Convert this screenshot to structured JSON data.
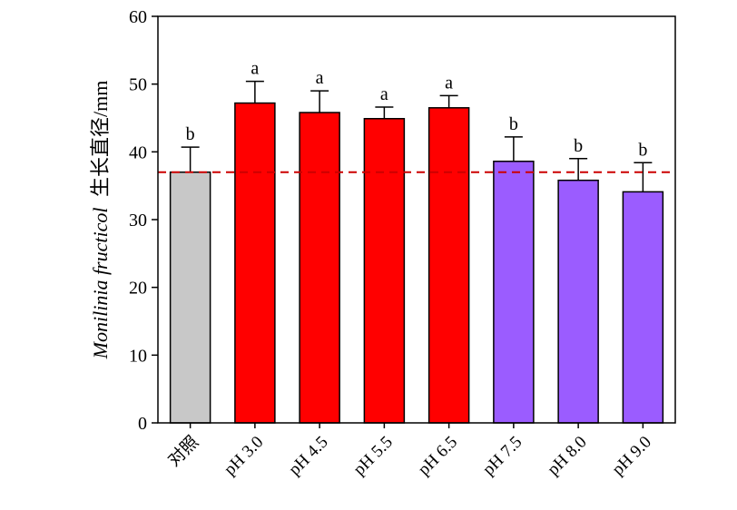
{
  "chart_data": {
    "type": "bar",
    "title": "",
    "xlabel": "",
    "ylabel_italic": "Monilinia fructicol",
    "ylabel_rest": "生长直径/mm",
    "ylim": [
      0,
      60
    ],
    "yticks": [
      0,
      10,
      20,
      30,
      40,
      50,
      60
    ],
    "grid": false,
    "categories": [
      "对照",
      "pH 3.0",
      "pH 4.5",
      "pH 5.5",
      "pH 6.5",
      "pH 7.5",
      "pH 8.0",
      "pH 9.0"
    ],
    "values": [
      37.0,
      47.2,
      45.8,
      44.9,
      46.5,
      38.6,
      35.8,
      34.1
    ],
    "errors": [
      3.7,
      3.2,
      3.2,
      1.7,
      1.8,
      3.6,
      3.2,
      4.3
    ],
    "significance": [
      "b",
      "a",
      "a",
      "a",
      "a",
      "b",
      "b",
      "b"
    ],
    "bar_colors": [
      "#c8c8c8",
      "#ff0000",
      "#ff0000",
      "#ff0000",
      "#ff0000",
      "#9b5cff",
      "#9b5cff",
      "#9b5cff"
    ],
    "reference_line": {
      "value": 37.0,
      "color": "#cc0000",
      "style": "dashed"
    }
  }
}
